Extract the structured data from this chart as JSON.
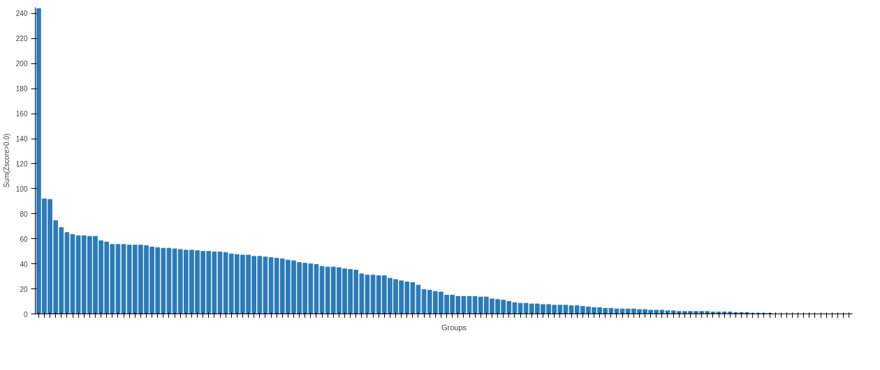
{
  "chart_data": {
    "type": "bar",
    "ylabel": "Sum(Zscore>0.0)",
    "categories": [
      null,
      null,
      null,
      null,
      null,
      null,
      null,
      null,
      null,
      null,
      null,
      null,
      null,
      null,
      null,
      null,
      null,
      null,
      null,
      null,
      null,
      null,
      null,
      null,
      null,
      null,
      null,
      null,
      null,
      null,
      null,
      null,
      null,
      null,
      null,
      null,
      null,
      null,
      null,
      null,
      null,
      null,
      null,
      null,
      null,
      null,
      null,
      null,
      null,
      null,
      null,
      null,
      null,
      null,
      null,
      null,
      null,
      null,
      null,
      null,
      null,
      null,
      null,
      null,
      null,
      null,
      null,
      null,
      null,
      null,
      null,
      null,
      null,
      null,
      null,
      null,
      null,
      null,
      null,
      null,
      null,
      null,
      null,
      null,
      null,
      null,
      null,
      null,
      null,
      null,
      null,
      null,
      null,
      null,
      null,
      null,
      null,
      null,
      null,
      null,
      null,
      null,
      null,
      null,
      null,
      null,
      null,
      null,
      null,
      null,
      null,
      null,
      null,
      null,
      null,
      null,
      null,
      null,
      null,
      null,
      null,
      null,
      null,
      null,
      null,
      null,
      null,
      null,
      null,
      null,
      null,
      null,
      null,
      null,
      null,
      null,
      null,
      null,
      null,
      null,
      null,
      null,
      null,
      null
    ],
    "series": [
      {
        "name": "Groups",
        "color": "#2b7bb9",
        "values": [
          244,
          92,
          91.5,
          74.5,
          69,
          65,
          63.5,
          62.5,
          62.5,
          62,
          62,
          58.5,
          57.5,
          55.5,
          55.5,
          55.5,
          55,
          55,
          55,
          54.5,
          53.5,
          53,
          52.5,
          52.5,
          52,
          51.5,
          51,
          51,
          50.5,
          50,
          50,
          49.5,
          49.5,
          49,
          48,
          47.5,
          47,
          47,
          46,
          46,
          45.5,
          45,
          44.5,
          44,
          43,
          42.5,
          41,
          40.5,
          40,
          39.5,
          38,
          37.5,
          37.5,
          37,
          36,
          35.5,
          35,
          32,
          31,
          31,
          30.5,
          30.5,
          28.5,
          27.5,
          26.5,
          25.5,
          25,
          23,
          19.5,
          19,
          18,
          17.5,
          15,
          15,
          14,
          14,
          14,
          14,
          13.5,
          13.5,
          12,
          11.5,
          11,
          10,
          9,
          8.5,
          8.5,
          8,
          8,
          7.5,
          7.5,
          7,
          7,
          7,
          6.5,
          6.5,
          6,
          5.5,
          5,
          5,
          4.5,
          4.5,
          4,
          4,
          4,
          4,
          3.5,
          3.5,
          3,
          3,
          3,
          2.5,
          2.5,
          2,
          2,
          2,
          2,
          2,
          2,
          1.5,
          1.5,
          1.5,
          1.5,
          1,
          1,
          1,
          0.5,
          0.5,
          0.5,
          0.5,
          0,
          0,
          0,
          0,
          0,
          0,
          0,
          0,
          0,
          0,
          0,
          0,
          0,
          0
        ]
      }
    ],
    "ylim": [
      0,
      245
    ],
    "yticks": [
      0,
      20,
      40,
      60,
      80,
      100,
      120,
      140,
      160,
      180,
      200,
      220,
      240
    ],
    "grid": false,
    "legend": "bottom",
    "tick_labels": "y"
  }
}
